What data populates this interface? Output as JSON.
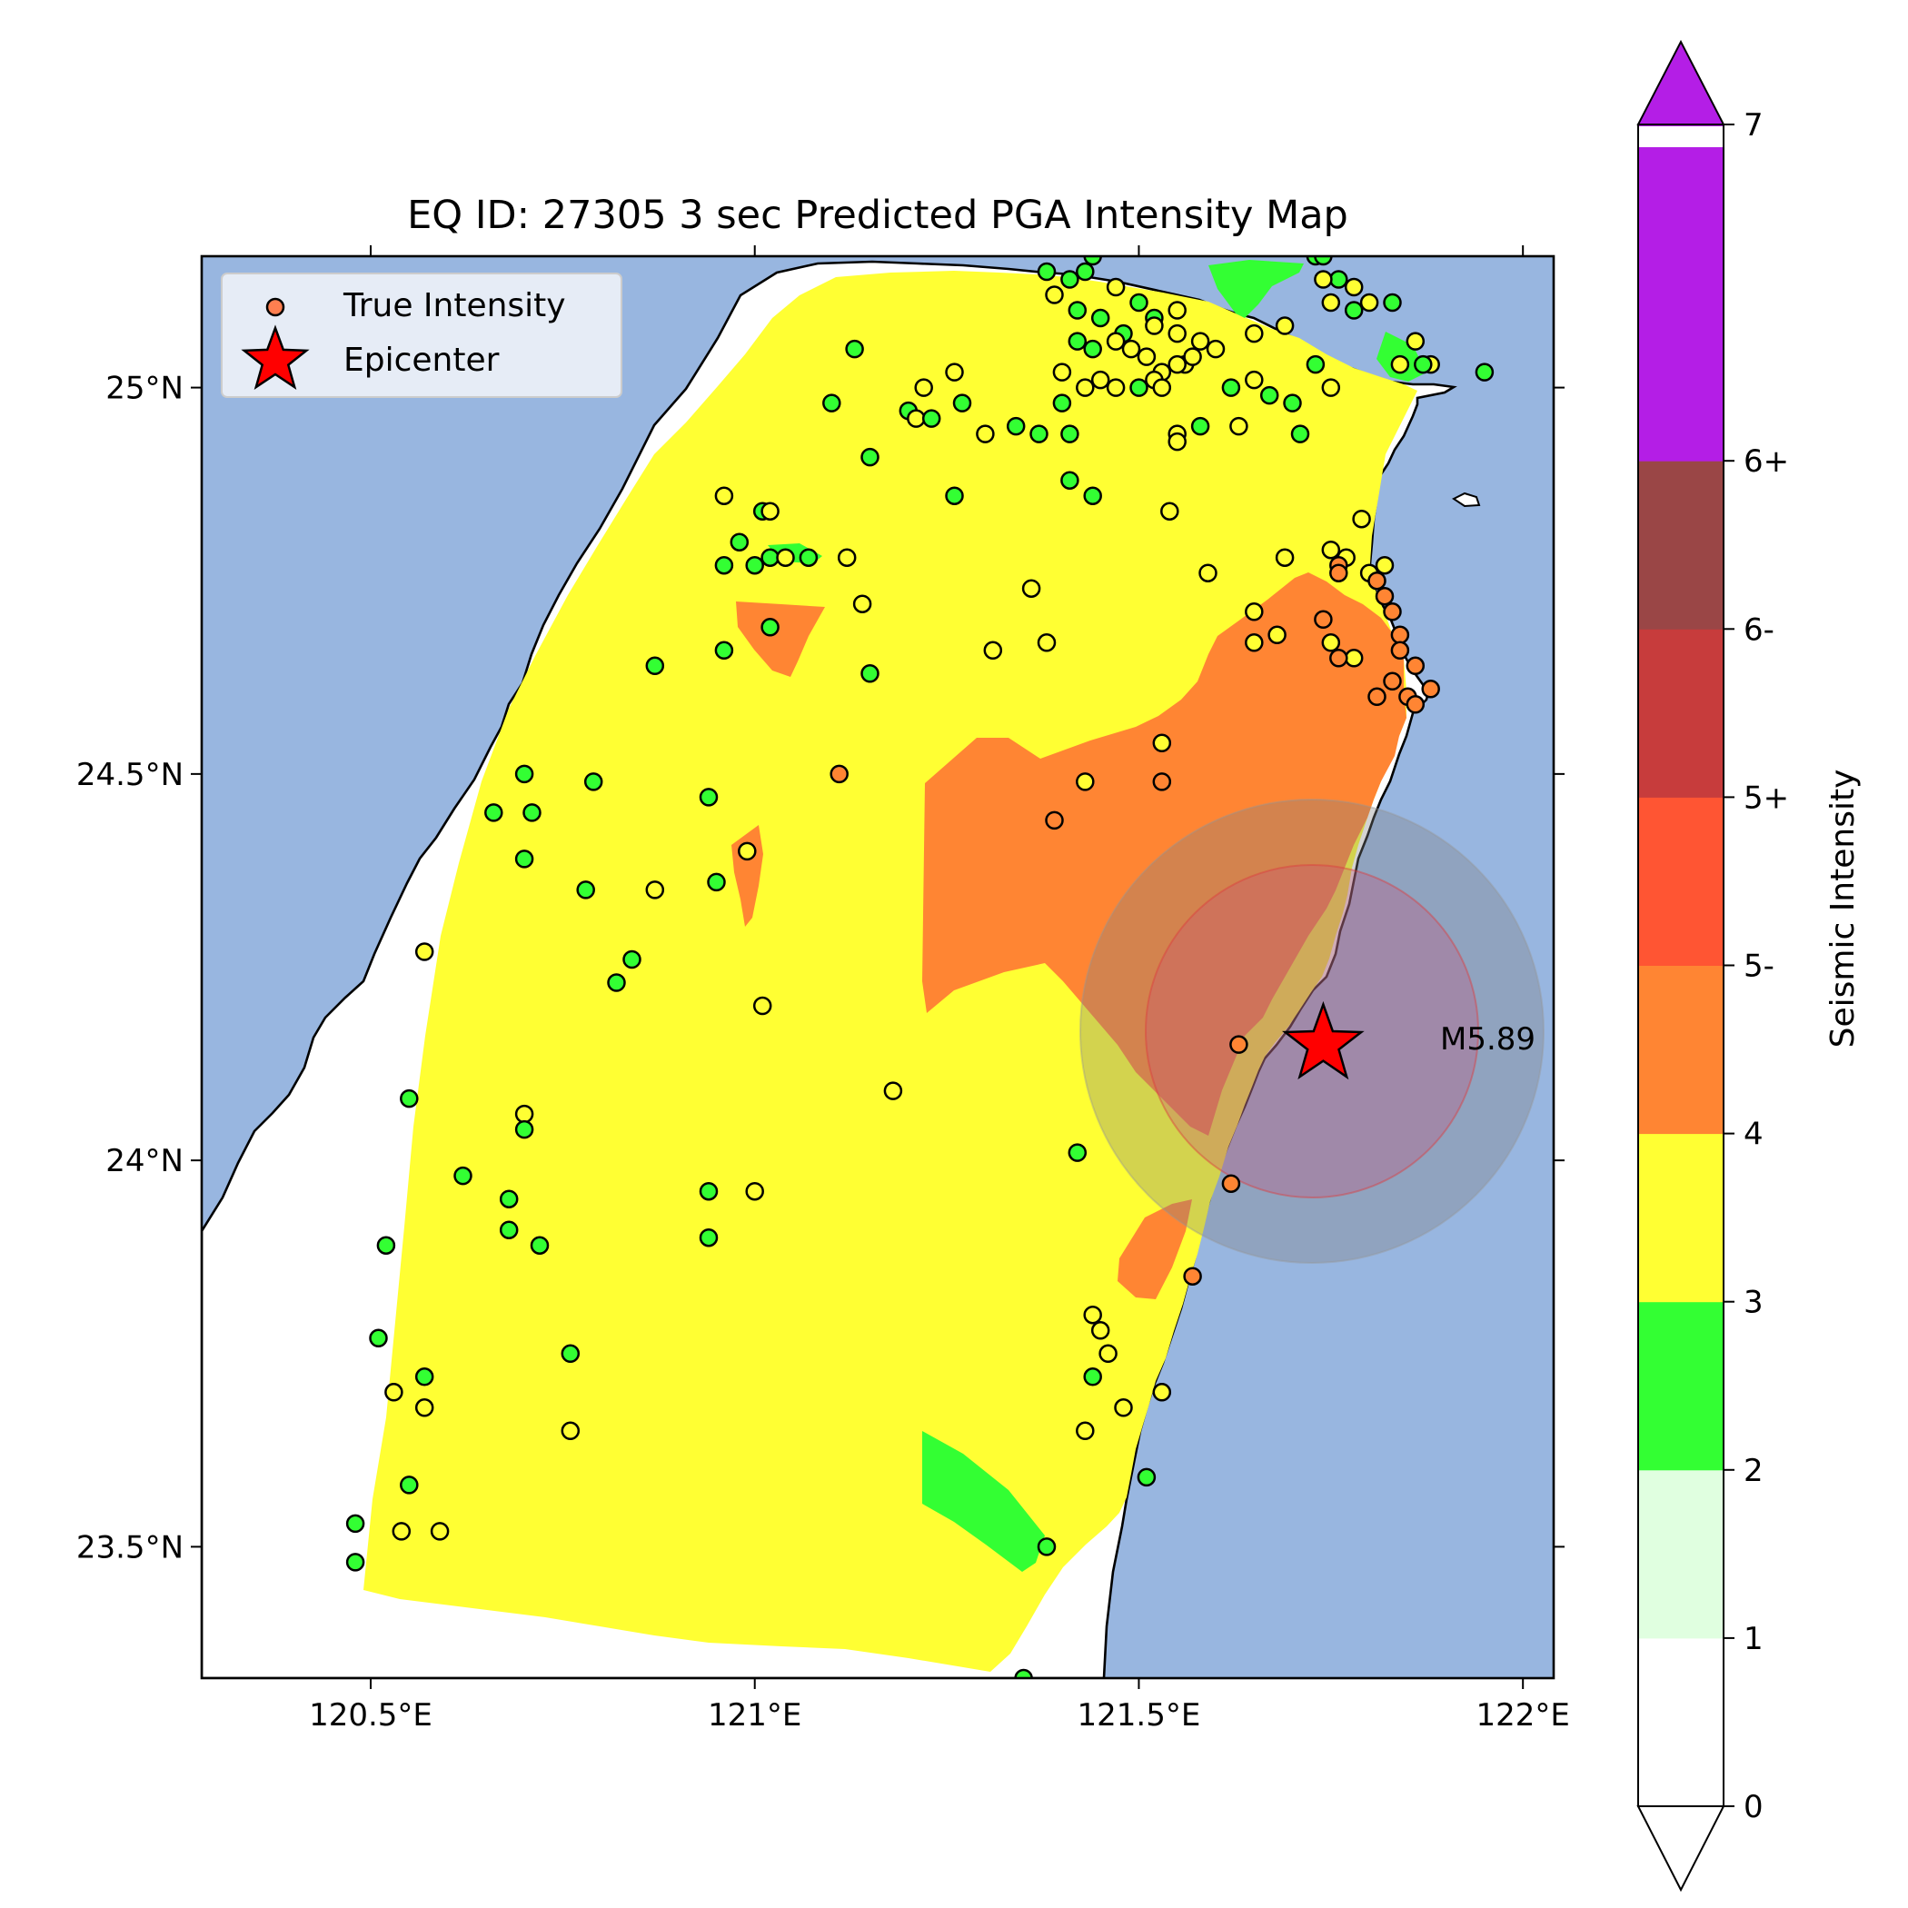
{
  "title": "EQ ID: 27305 3 sec Predicted PGA Intensity Map",
  "axes": {
    "x_ticks": [
      {
        "value": 120.5,
        "label": "120.5°E"
      },
      {
        "value": 121.0,
        "label": "121°E"
      },
      {
        "value": 121.5,
        "label": "121.5°E"
      },
      {
        "value": 122.0,
        "label": "122°E"
      }
    ],
    "y_ticks": [
      {
        "value": 23.5,
        "label": "23.5°N"
      },
      {
        "value": 24.0,
        "label": "24°N"
      },
      {
        "value": 24.5,
        "label": "24.5°N"
      },
      {
        "value": 25.0,
        "label": "25°N"
      }
    ],
    "xlim": [
      120.28,
      122.04
    ],
    "ylim": [
      23.33,
      25.17
    ]
  },
  "legend": {
    "position": "top-left",
    "entries": [
      {
        "label": "True Intensity",
        "marker": "circle",
        "color": "#ff7f50"
      },
      {
        "label": "Epicenter",
        "marker": "star",
        "color": "#ff0000"
      }
    ]
  },
  "epicenter": {
    "lon": 121.74,
    "lat": 24.15,
    "magnitude_label": "M5.89"
  },
  "colorbar": {
    "label": "Seismic Intensity",
    "levels": [
      {
        "label": "0",
        "color": "#ffffff"
      },
      {
        "label": "1",
        "color": "#e0ffe0"
      },
      {
        "label": "2",
        "color": "#33ff33"
      },
      {
        "label": "3",
        "color": "#ffff33"
      },
      {
        "label": "4",
        "color": "#ff8533"
      },
      {
        "label": "5-",
        "color": "#ff5533"
      },
      {
        "label": "5+",
        "color": "#c73c3c"
      },
      {
        "label": "6-",
        "color": "#9a4646"
      },
      {
        "label": "6+",
        "color": "#b41ee6"
      },
      {
        "label": "7",
        "color": "#b41ee6"
      }
    ]
  },
  "colors": {
    "ocean": "#98b6e0",
    "land": "#ffffff",
    "int2": "#33ff33",
    "int3": "#ffff33",
    "int4": "#ff8533"
  },
  "chart_data": {
    "type": "scatter",
    "title": "EQ ID: 27305 3 sec Predicted PGA Intensity Map",
    "xlabel": "",
    "ylabel": "",
    "xlim": [
      120.28,
      122.04
    ],
    "ylim": [
      23.33,
      25.17
    ],
    "series": [
      {
        "name": "True Intensity",
        "points": [
          [
            121.38,
            25.15,
            2
          ],
          [
            121.41,
            25.14,
            2
          ],
          [
            121.43,
            25.15,
            2
          ],
          [
            121.44,
            25.17,
            2
          ],
          [
            121.47,
            25.13,
            3
          ],
          [
            121.39,
            25.12,
            3
          ],
          [
            121.5,
            25.11,
            2
          ],
          [
            121.52,
            25.09,
            2
          ],
          [
            121.55,
            25.1,
            3
          ],
          [
            121.42,
            25.1,
            2
          ],
          [
            121.45,
            25.09,
            2
          ],
          [
            121.48,
            25.07,
            2
          ],
          [
            121.52,
            25.08,
            3
          ],
          [
            121.55,
            25.07,
            3
          ],
          [
            121.58,
            25.06,
            3
          ],
          [
            121.6,
            25.05,
            3
          ],
          [
            121.42,
            25.06,
            2
          ],
          [
            121.44,
            25.05,
            2
          ],
          [
            121.47,
            25.06,
            3
          ],
          [
            121.49,
            25.05,
            3
          ],
          [
            121.51,
            25.04,
            3
          ],
          [
            121.53,
            25.02,
            3
          ],
          [
            121.56,
            25.03,
            3
          ],
          [
            121.4,
            25.02,
            3
          ],
          [
            121.43,
            25.0,
            3
          ],
          [
            121.45,
            25.01,
            3
          ],
          [
            121.47,
            25.0,
            3
          ],
          [
            121.5,
            25.0,
            2
          ],
          [
            121.52,
            25.01,
            3
          ],
          [
            121.55,
            25.03,
            3
          ],
          [
            121.57,
            25.04,
            3
          ],
          [
            121.62,
            25.0,
            2
          ],
          [
            121.65,
            25.01,
            3
          ],
          [
            121.67,
            24.99,
            2
          ],
          [
            121.7,
            24.98,
            2
          ],
          [
            121.73,
            25.17,
            2
          ],
          [
            121.74,
            25.17,
            2
          ],
          [
            121.76,
            25.14,
            2
          ],
          [
            121.74,
            25.14,
            3
          ],
          [
            121.78,
            25.13,
            3
          ],
          [
            121.8,
            25.11,
            3
          ],
          [
            121.83,
            25.11,
            2
          ],
          [
            121.75,
            25.11,
            3
          ],
          [
            121.78,
            25.1,
            2
          ],
          [
            121.86,
            25.06,
            3
          ],
          [
            121.88,
            25.03,
            3
          ],
          [
            121.87,
            25.03,
            2
          ],
          [
            121.95,
            25.02,
            2
          ],
          [
            121.84,
            25.03,
            3
          ],
          [
            121.73,
            25.03,
            2
          ],
          [
            121.75,
            25.0,
            3
          ],
          [
            121.65,
            25.07,
            3
          ],
          [
            121.69,
            25.08,
            3
          ],
          [
            121.53,
            25.0,
            3
          ],
          [
            121.55,
            24.94,
            3
          ],
          [
            121.55,
            24.93,
            3
          ],
          [
            121.58,
            24.95,
            2
          ],
          [
            121.63,
            24.95,
            3
          ],
          [
            121.71,
            24.94,
            2
          ],
          [
            121.13,
            25.05,
            2
          ],
          [
            121.1,
            24.98,
            2
          ],
          [
            121.2,
            24.97,
            2
          ],
          [
            121.21,
            24.96,
            3
          ],
          [
            121.22,
            25.0,
            3
          ],
          [
            121.23,
            24.96,
            2
          ],
          [
            121.26,
            25.02,
            3
          ],
          [
            121.27,
            24.98,
            2
          ],
          [
            121.3,
            24.94,
            3
          ],
          [
            121.34,
            24.95,
            2
          ],
          [
            121.37,
            24.94,
            2
          ],
          [
            121.4,
            24.98,
            2
          ],
          [
            121.41,
            24.94,
            2
          ],
          [
            121.41,
            24.88,
            2
          ],
          [
            121.44,
            24.86,
            2
          ],
          [
            121.54,
            24.84,
            3
          ],
          [
            121.15,
            24.91,
            2
          ],
          [
            121.26,
            24.86,
            2
          ],
          [
            120.96,
            24.86,
            3
          ],
          [
            121.01,
            24.84,
            2
          ],
          [
            121.02,
            24.84,
            3
          ],
          [
            120.98,
            24.8,
            2
          ],
          [
            120.96,
            24.77,
            2
          ],
          [
            121.0,
            24.77,
            2
          ],
          [
            121.02,
            24.78,
            2
          ],
          [
            121.04,
            24.78,
            3
          ],
          [
            121.07,
            24.78,
            2
          ],
          [
            121.12,
            24.78,
            3
          ],
          [
            121.14,
            24.72,
            3
          ],
          [
            121.36,
            24.74,
            3
          ],
          [
            121.59,
            24.76,
            3
          ],
          [
            121.69,
            24.78,
            3
          ],
          [
            121.75,
            24.79,
            3
          ],
          [
            121.77,
            24.78,
            3
          ],
          [
            121.76,
            24.77,
            4
          ],
          [
            121.79,
            24.83,
            3
          ],
          [
            121.8,
            24.76,
            3
          ],
          [
            121.82,
            24.77,
            3
          ],
          [
            121.81,
            24.75,
            4
          ],
          [
            121.83,
            24.71,
            4
          ],
          [
            121.82,
            24.73,
            4
          ],
          [
            121.84,
            24.68,
            4
          ],
          [
            121.76,
            24.76,
            4
          ],
          [
            121.74,
            24.7,
            4
          ],
          [
            121.65,
            24.71,
            3
          ],
          [
            121.68,
            24.68,
            3
          ],
          [
            121.75,
            24.67,
            3
          ],
          [
            121.78,
            24.65,
            3
          ],
          [
            121.76,
            24.65,
            4
          ],
          [
            121.84,
            24.66,
            4
          ],
          [
            121.83,
            24.62,
            4
          ],
          [
            121.86,
            24.64,
            4
          ],
          [
            121.85,
            24.6,
            4
          ],
          [
            121.88,
            24.61,
            4
          ],
          [
            121.86,
            24.59,
            4
          ],
          [
            121.81,
            24.6,
            4
          ],
          [
            121.65,
            24.67,
            3
          ],
          [
            121.38,
            24.67,
            3
          ],
          [
            121.31,
            24.66,
            3
          ],
          [
            121.02,
            24.69,
            2
          ],
          [
            120.96,
            24.66,
            2
          ],
          [
            120.87,
            24.64,
            2
          ],
          [
            121.15,
            24.63,
            2
          ],
          [
            121.11,
            24.5,
            4
          ],
          [
            121.53,
            24.54,
            3
          ],
          [
            121.53,
            24.49,
            4
          ],
          [
            121.43,
            24.49,
            3
          ],
          [
            121.39,
            24.44,
            4
          ],
          [
            120.7,
            24.5,
            2
          ],
          [
            120.79,
            24.49,
            2
          ],
          [
            120.66,
            24.45,
            2
          ],
          [
            120.71,
            24.45,
            2
          ],
          [
            120.94,
            24.47,
            2
          ],
          [
            120.7,
            24.39,
            2
          ],
          [
            120.99,
            24.4,
            3
          ],
          [
            120.78,
            24.35,
            2
          ],
          [
            120.87,
            24.35,
            3
          ],
          [
            120.95,
            24.36,
            2
          ],
          [
            120.57,
            24.27,
            3
          ],
          [
            120.84,
            24.26,
            2
          ],
          [
            120.82,
            24.23,
            2
          ],
          [
            121.01,
            24.2,
            3
          ],
          [
            121.63,
            24.15,
            4
          ],
          [
            121.18,
            24.09,
            3
          ],
          [
            120.55,
            24.08,
            2
          ],
          [
            120.7,
            24.06,
            3
          ],
          [
            120.7,
            24.04,
            2
          ],
          [
            120.62,
            23.98,
            2
          ],
          [
            121.42,
            24.01,
            2
          ],
          [
            120.68,
            23.95,
            2
          ],
          [
            120.94,
            23.96,
            2
          ],
          [
            121.0,
            23.96,
            3
          ],
          [
            121.62,
            23.97,
            4
          ],
          [
            120.52,
            23.89,
            2
          ],
          [
            120.68,
            23.91,
            2
          ],
          [
            120.72,
            23.89,
            2
          ],
          [
            120.94,
            23.9,
            2
          ],
          [
            121.57,
            23.85,
            4
          ],
          [
            121.44,
            23.8,
            3
          ],
          [
            121.45,
            23.78,
            3
          ],
          [
            121.46,
            23.75,
            3
          ],
          [
            121.44,
            23.72,
            2
          ],
          [
            120.51,
            23.77,
            2
          ],
          [
            120.76,
            23.75,
            2
          ],
          [
            120.57,
            23.72,
            2
          ],
          [
            120.53,
            23.7,
            3
          ],
          [
            120.57,
            23.68,
            3
          ],
          [
            121.48,
            23.68,
            3
          ],
          [
            121.53,
            23.7,
            3
          ],
          [
            120.76,
            23.65,
            3
          ],
          [
            121.43,
            23.65,
            3
          ],
          [
            121.51,
            23.59,
            2
          ],
          [
            120.55,
            23.58,
            2
          ],
          [
            120.48,
            23.53,
            2
          ],
          [
            120.54,
            23.52,
            3
          ],
          [
            120.59,
            23.52,
            3
          ],
          [
            121.38,
            23.5,
            2
          ],
          [
            120.48,
            23.48,
            2
          ],
          [
            121.35,
            23.33,
            2
          ]
        ]
      },
      {
        "name": "Epicenter",
        "points": [
          [
            121.74,
            24.15
          ]
        ]
      }
    ],
    "grid": false,
    "legend": "top-left"
  }
}
